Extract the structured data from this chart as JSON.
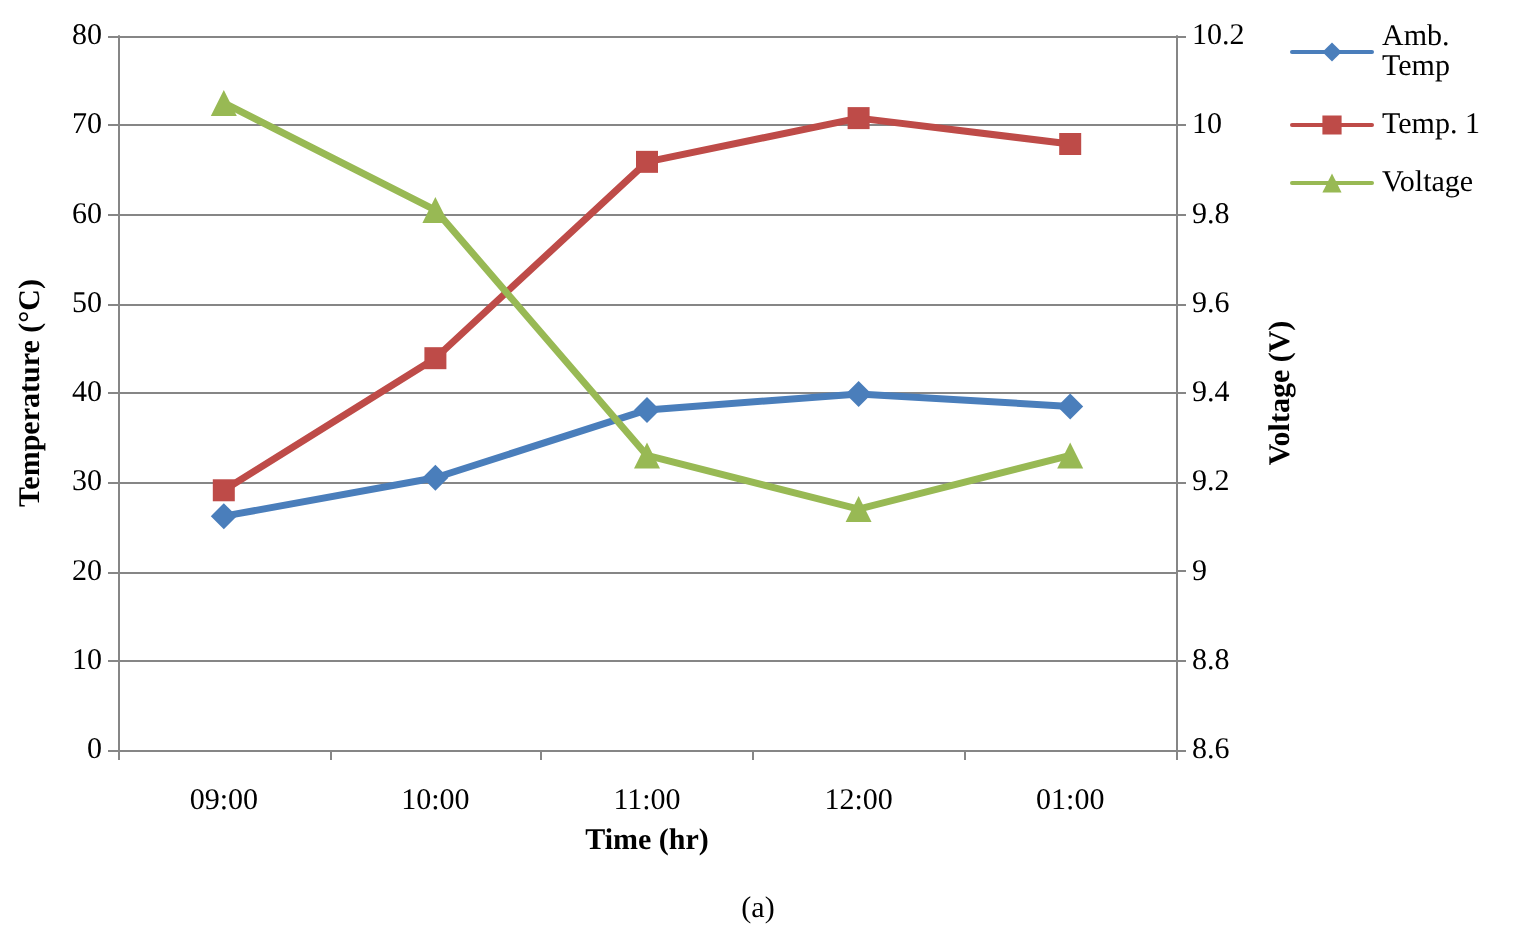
{
  "chart_data": {
    "type": "line",
    "xlabel": "Time (hr)",
    "ylabel": "Temperature (°C)",
    "y2label": "Voltage (V)",
    "categories": [
      "09:00",
      "10:00",
      "11:00",
      "12:00",
      "01:00"
    ],
    "series": [
      {
        "name": "Amb. Temp",
        "color": "#4a7ebb",
        "marker": "diamond",
        "values": [
          26.2,
          30.5,
          38.1,
          39.9,
          38.5
        ]
      },
      {
        "name": "Temp. 1",
        "color": "#be4b48",
        "marker": "square",
        "values": [
          29.1,
          43.9,
          65.9,
          70.8,
          67.9
        ]
      },
      {
        "name": "Voltage",
        "color": "#98b954",
        "marker": "triangle",
        "axis": "y2",
        "values": [
          10.05,
          9.81,
          9.26,
          9.14,
          9.26
        ]
      }
    ],
    "ylim": [
      0,
      80
    ],
    "yticks": [
      0,
      10,
      20,
      30,
      40,
      50,
      60,
      70,
      80
    ],
    "y2lim": [
      8.6,
      10.2
    ],
    "y2ticks": [
      8.6,
      8.8,
      9,
      9.2,
      9.4,
      9.6,
      9.8,
      10,
      10.2
    ],
    "grid": "y",
    "legend": "top right",
    "annotations": [
      "(a)"
    ]
  }
}
